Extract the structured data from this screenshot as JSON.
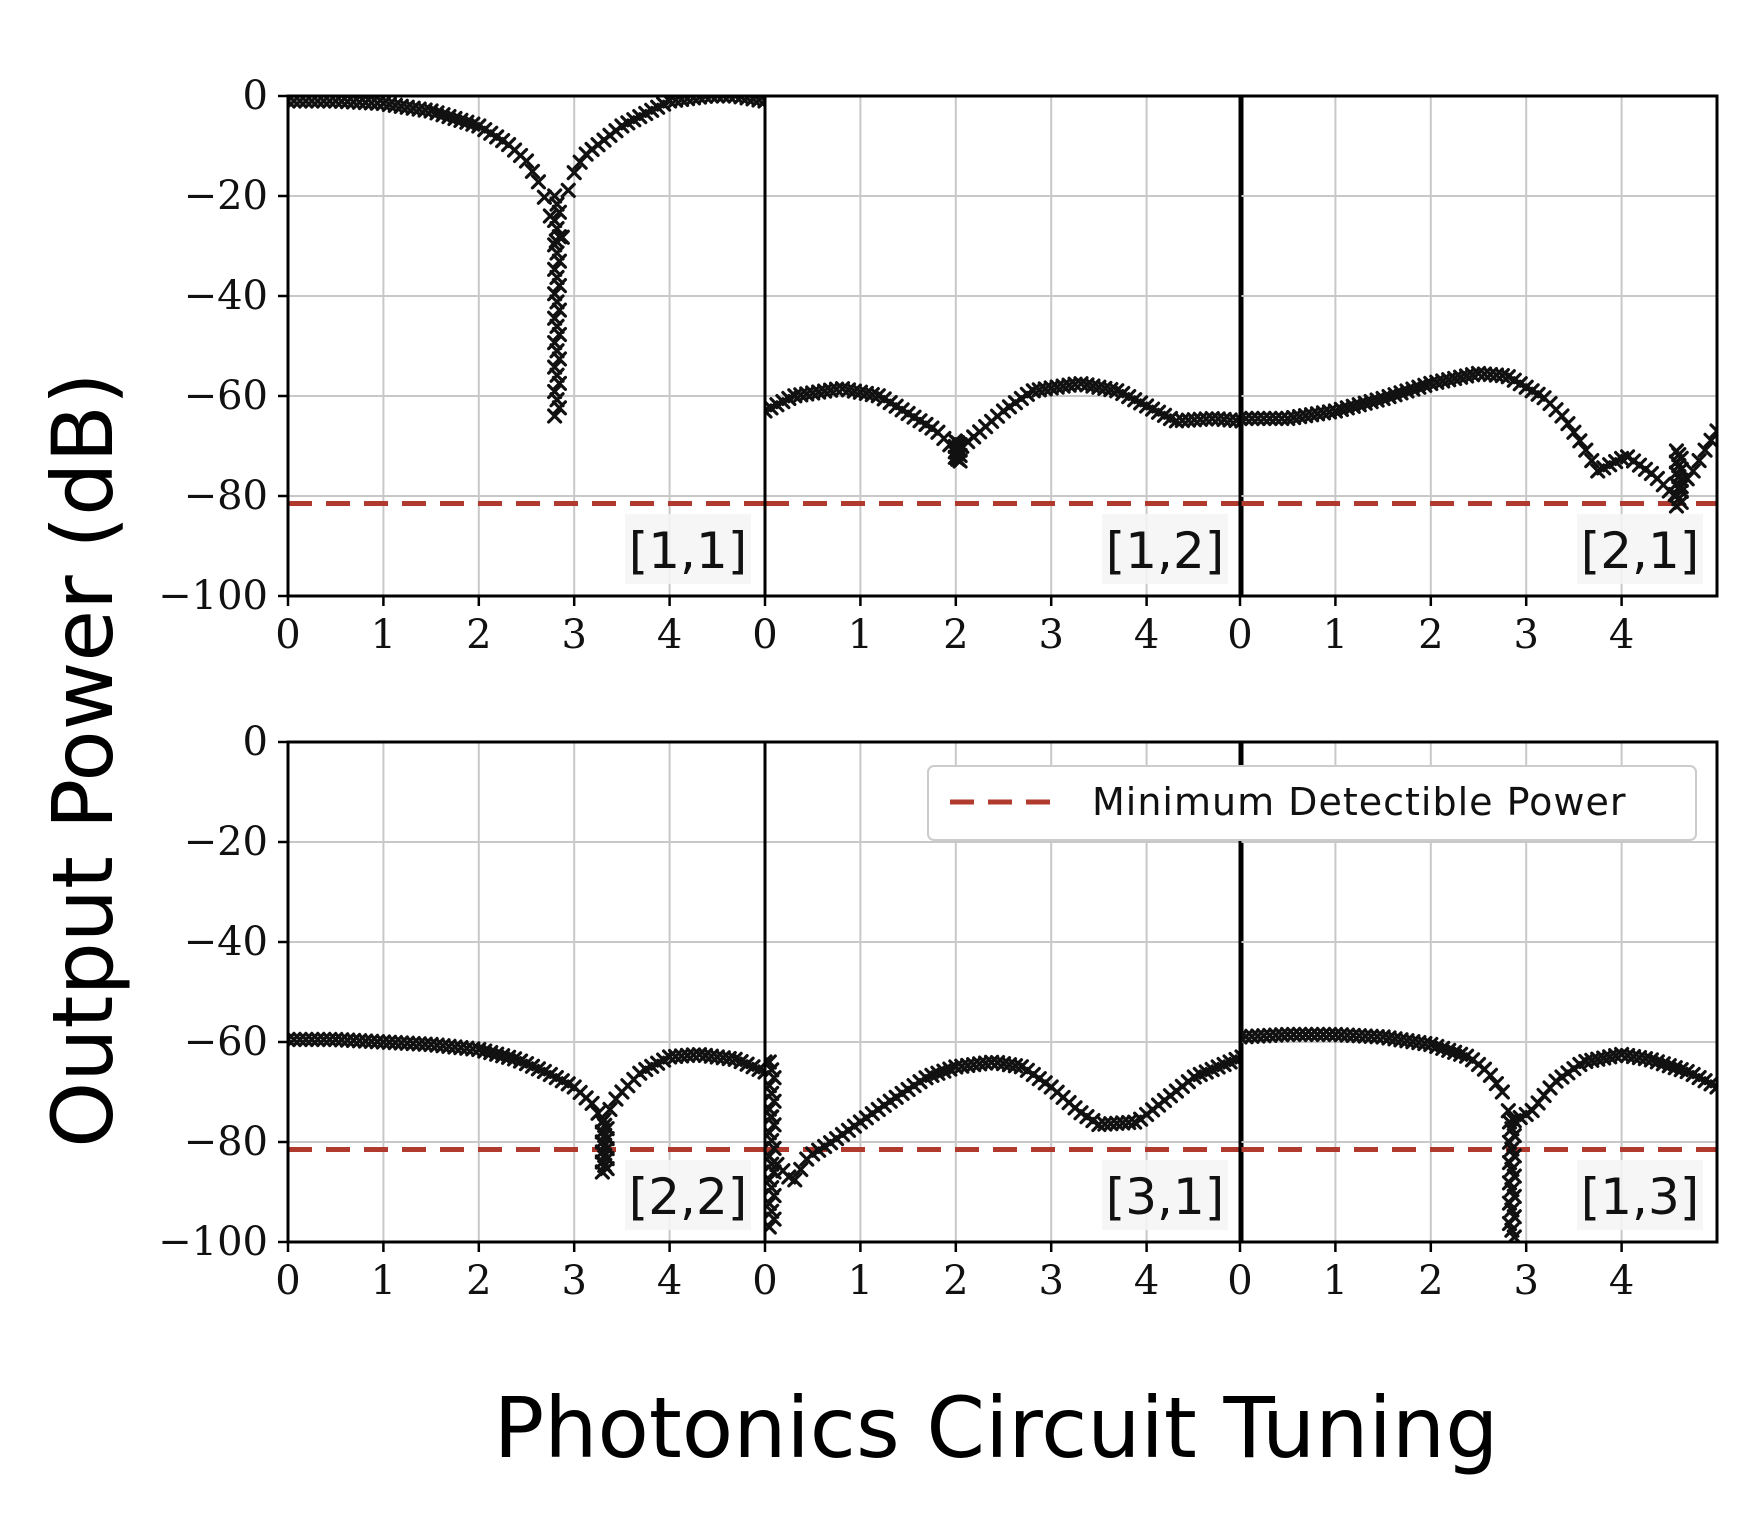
{
  "chart_data": {
    "type": "scatter",
    "xlabel": "Photonics Circuit Tuning",
    "ylabel": "Output Power (dB)",
    "ylim": [
      -100,
      0
    ],
    "xlim": [
      0,
      5
    ],
    "y_ticks": [
      "0",
      "−20",
      "−40",
      "−60",
      "−80",
      "−100"
    ],
    "y_tick_values": [
      0,
      -20,
      -40,
      -60,
      -80,
      -100
    ],
    "x_ticks": [
      "0",
      "1",
      "2",
      "3",
      "4"
    ],
    "x_tick_values": [
      0,
      1,
      2,
      3,
      4
    ],
    "grid": true,
    "marker": "x",
    "marker_color": "#111111",
    "threshold": {
      "name": "Minimum Detectible Power",
      "value": -81.5,
      "color": "#b03a2e",
      "style": "dashed"
    },
    "legend": {
      "placement": "top-right",
      "panel": 4,
      "entry": "Minimum Detectible Power"
    },
    "panels": [
      {
        "label": "[1,1]",
        "row": 0,
        "col": 0,
        "anchors": [
          [
            0,
            -1
          ],
          [
            0.5,
            -1
          ],
          [
            1,
            -1.5
          ],
          [
            1.5,
            -3
          ],
          [
            2,
            -6
          ],
          [
            2.3,
            -9.5
          ],
          [
            2.5,
            -13
          ],
          [
            2.65,
            -18
          ],
          [
            2.75,
            -24
          ],
          [
            2.85,
            -32
          ],
          [
            2.95,
            -17
          ],
          [
            3.1,
            -12
          ],
          [
            3.5,
            -6
          ],
          [
            4,
            -1
          ],
          [
            4.4,
            0
          ],
          [
            4.7,
            0
          ],
          [
            5,
            -1
          ]
        ],
        "clusters": [
          {
            "x": 2.82,
            "ymin": -64,
            "ymax": -20,
            "count": 28
          }
        ]
      },
      {
        "label": "[1,2]",
        "row": 0,
        "col": 1,
        "anchors": [
          [
            0,
            -63
          ],
          [
            0.3,
            -60
          ],
          [
            0.8,
            -58.5
          ],
          [
            1.2,
            -60
          ],
          [
            1.5,
            -63.5
          ],
          [
            1.8,
            -67
          ],
          [
            2,
            -71
          ],
          [
            2.2,
            -68
          ],
          [
            2.5,
            -63
          ],
          [
            2.8,
            -59
          ],
          [
            3.3,
            -57.5
          ],
          [
            3.7,
            -59
          ],
          [
            4,
            -62
          ],
          [
            4.3,
            -65
          ],
          [
            4.7,
            -64.5
          ],
          [
            5,
            -65
          ]
        ],
        "clusters": [
          {
            "x": 2.02,
            "ymin": -73,
            "ymax": -69,
            "count": 12
          }
        ]
      },
      {
        "label": "[2,1]",
        "row": 0,
        "col": 2,
        "anchors": [
          [
            0,
            -64.5
          ],
          [
            0.5,
            -64.5
          ],
          [
            1,
            -63
          ],
          [
            1.5,
            -60.5
          ],
          [
            2,
            -57.5
          ],
          [
            2.5,
            -55.5
          ],
          [
            2.8,
            -56
          ],
          [
            3.2,
            -60.5
          ],
          [
            3.4,
            -64.5
          ],
          [
            3.6,
            -70
          ],
          [
            3.75,
            -75
          ],
          [
            4.05,
            -72
          ],
          [
            4.35,
            -76
          ],
          [
            4.55,
            -80
          ],
          [
            4.75,
            -75
          ],
          [
            4.9,
            -70
          ],
          [
            5,
            -67
          ]
        ],
        "clusters": [
          {
            "x": 4.6,
            "ymin": -82,
            "ymax": -71,
            "count": 16
          }
        ]
      },
      {
        "label": "[2,2]",
        "row": 1,
        "col": 0,
        "anchors": [
          [
            0,
            -59.5
          ],
          [
            0.5,
            -59.5
          ],
          [
            1,
            -60
          ],
          [
            1.5,
            -60.5
          ],
          [
            2,
            -61.5
          ],
          [
            2.4,
            -63.5
          ],
          [
            2.7,
            -66
          ],
          [
            3,
            -69
          ],
          [
            3.2,
            -72.5
          ],
          [
            3.3,
            -76
          ],
          [
            3.45,
            -71
          ],
          [
            3.7,
            -66
          ],
          [
            4,
            -63
          ],
          [
            4.3,
            -62.5
          ],
          [
            4.7,
            -63.5
          ],
          [
            5,
            -66
          ]
        ],
        "clusters": [
          {
            "x": 3.32,
            "ymin": -86,
            "ymax": -76,
            "count": 16
          }
        ]
      },
      {
        "label": "[3,1]",
        "row": 1,
        "col": 1,
        "anchors": [
          [
            0,
            -64
          ],
          [
            0.05,
            -72
          ],
          [
            0.1,
            -84
          ],
          [
            0.2,
            -86
          ],
          [
            0.3,
            -88
          ],
          [
            0.45,
            -83
          ],
          [
            0.7,
            -80
          ],
          [
            1,
            -76
          ],
          [
            1.3,
            -72
          ],
          [
            1.7,
            -67
          ],
          [
            2,
            -65
          ],
          [
            2.4,
            -64
          ],
          [
            2.7,
            -65
          ],
          [
            3,
            -69
          ],
          [
            3.3,
            -74
          ],
          [
            3.5,
            -76.5
          ],
          [
            3.9,
            -76
          ],
          [
            4.1,
            -73
          ],
          [
            4.5,
            -67
          ],
          [
            5,
            -63
          ]
        ],
        "clusters": [
          {
            "x": 0.07,
            "ymin": -97,
            "ymax": -64,
            "count": 22
          }
        ]
      },
      {
        "label": "[1,3]",
        "row": 1,
        "col": 2,
        "anchors": [
          [
            0,
            -59
          ],
          [
            0.5,
            -58.5
          ],
          [
            1,
            -58.5
          ],
          [
            1.5,
            -59
          ],
          [
            2,
            -60.5
          ],
          [
            2.4,
            -63
          ],
          [
            2.6,
            -66
          ],
          [
            2.75,
            -70
          ],
          [
            2.85,
            -76
          ],
          [
            3.05,
            -74
          ],
          [
            3.3,
            -68
          ],
          [
            3.6,
            -64
          ],
          [
            4,
            -62.5
          ],
          [
            4.3,
            -63.5
          ],
          [
            4.7,
            -66
          ],
          [
            5,
            -69
          ]
        ],
        "clusters": [
          {
            "x": 2.85,
            "ymin": -99,
            "ymax": -76,
            "count": 18
          }
        ]
      }
    ]
  }
}
